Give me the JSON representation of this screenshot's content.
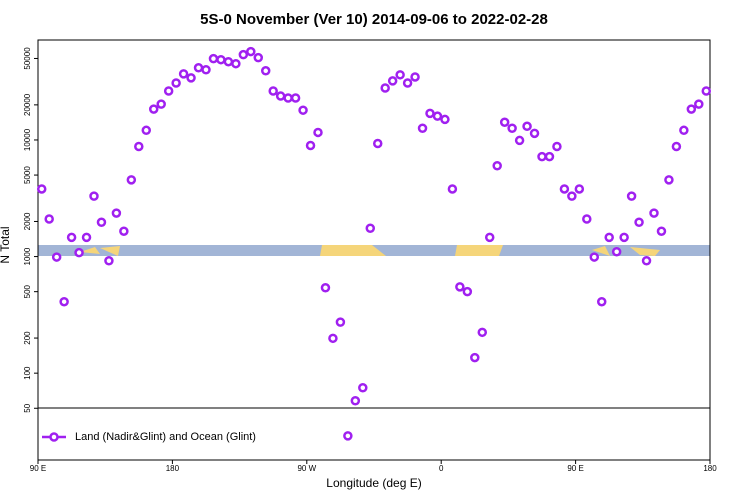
{
  "chart_data": {
    "type": "scatter",
    "title": "5S-0 November (Ver 10)   2014-09-06 to 2022-02-28",
    "x_label": "Longitude (deg E)",
    "y_label": "N Total",
    "log_y": true,
    "xlim": [
      90,
      540
    ],
    "ylim": [
      18,
      72000
    ],
    "xticks": [
      {
        "value": 90,
        "label": "90 E"
      },
      180,
      {
        "value": 270,
        "label": "90 W"
      },
      {
        "value": 360,
        "label": "0"
      },
      {
        "value": 450,
        "label": "90 E"
      },
      {
        "value": 540,
        "label": "180"
      }
    ],
    "yticks": [
      50,
      100,
      200,
      500,
      1000,
      2000,
      5000,
      10000,
      20000,
      50000
    ],
    "legend": "bottom-left",
    "series": [
      {
        "name": "Land (Nadir&Glint) and Ocean (Glint)",
        "color": "#a020f0",
        "x": [
          92.5,
          97.5,
          102.5,
          107.5,
          112.5,
          117.5,
          122.5,
          127.5,
          132.5,
          137.5,
          142.5,
          147.5,
          152.5,
          157.5,
          162.5,
          167.5,
          172.5,
          177.5,
          182.5,
          187.5,
          192.5,
          197.5,
          202.5,
          207.5,
          212.5,
          217.5,
          222.5,
          227.5,
          232.5,
          237.5,
          242.5,
          247.5,
          252.5,
          257.5,
          262.5,
          267.5,
          272.5,
          277.5,
          282.5,
          287.5,
          292.5,
          297.5,
          302.5,
          307.5,
          312.5,
          317.5,
          322.5,
          327.5,
          332.5,
          337.5,
          342.5,
          347.5,
          352.5,
          357.5,
          362.5,
          367.5,
          372.5,
          377.5,
          382.5,
          387.5,
          392.5,
          397.5,
          402.5,
          407.5,
          412.5,
          417.5,
          422.5,
          427.5,
          432.5,
          437.5,
          442.5,
          447.5,
          452.5,
          457.5,
          462.5,
          467.5,
          472.5,
          477.5,
          482.5,
          487.5,
          492.5,
          497.5,
          502.5,
          507.5,
          512.5,
          517.5,
          522.5,
          527.5,
          532.5,
          537.5
        ],
        "values": [
          3800,
          2100,
          990,
          410,
          1460,
          1080,
          1460,
          3300,
          1970,
          920,
          2360,
          1650,
          4550,
          8790,
          12100,
          18400,
          20300,
          26300,
          30800,
          36900,
          34100,
          41600,
          40000,
          49800,
          48800,
          46900,
          45100,
          53900,
          57300,
          50800,
          39200,
          26300,
          23800,
          22900,
          22900,
          18000,
          8960,
          11600,
          540,
          199,
          274,
          29,
          58,
          75,
          1750,
          9330,
          27900,
          32100,
          36200,
          30800,
          34700,
          12600,
          16900,
          16000,
          15000,
          3800,
          550,
          500,
          136,
          224,
          1460,
          6010,
          14200,
          12600,
          9910,
          13100,
          11400,
          7200,
          7200,
          8790,
          3800,
          3300,
          3800,
          2100,
          990,
          410,
          1460,
          1100,
          1460,
          3300,
          1970,
          920,
          2360,
          1650,
          4550,
          8790,
          12100,
          18400,
          20300,
          26300
        ]
      }
    ]
  }
}
